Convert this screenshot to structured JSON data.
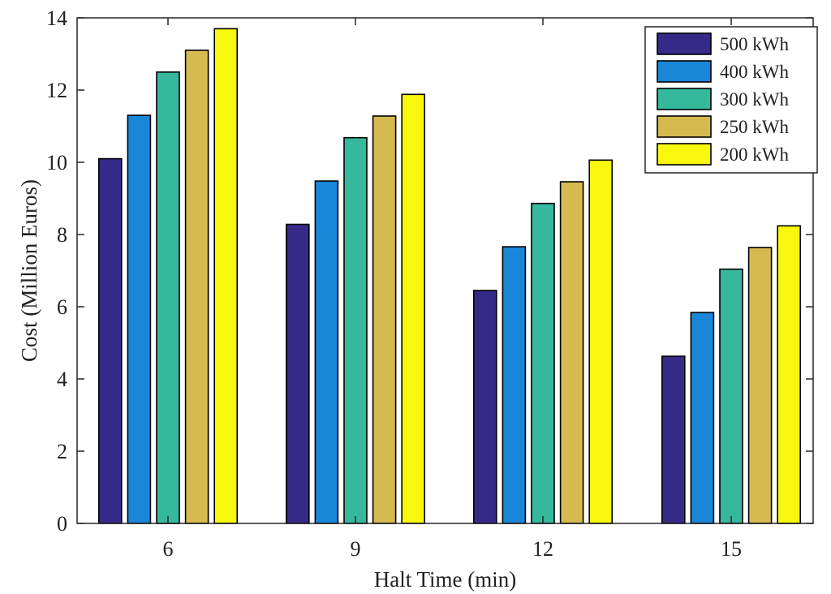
{
  "chart_data": {
    "type": "bar",
    "title": "",
    "xlabel": "Halt Time (min)",
    "ylabel": "Cost (Million Euros)",
    "categories": [
      "6",
      "9",
      "12",
      "15"
    ],
    "ylim": [
      0,
      14
    ],
    "yticks": [
      0,
      2,
      4,
      6,
      8,
      10,
      12,
      14
    ],
    "ytick_labels": [
      "0",
      "2",
      "4",
      "6",
      "8",
      "10",
      "12",
      "14"
    ],
    "grid": false,
    "legend_position": "top-right",
    "series": [
      {
        "name": "500 kWh",
        "color": "#352A87",
        "values": [
          10.1,
          8.28,
          6.45,
          4.63
        ]
      },
      {
        "name": "400 kWh",
        "color": "#1A86D8",
        "values": [
          11.3,
          9.48,
          7.66,
          5.84
        ]
      },
      {
        "name": "300 kWh",
        "color": "#36B89D",
        "values": [
          12.5,
          10.68,
          8.86,
          7.04
        ]
      },
      {
        "name": "250 kWh",
        "color": "#D6BA50",
        "values": [
          13.1,
          11.28,
          9.46,
          7.64
        ]
      },
      {
        "name": "200 kWh",
        "color": "#F8F70E",
        "values": [
          13.7,
          11.88,
          10.06,
          8.24
        ]
      }
    ]
  }
}
